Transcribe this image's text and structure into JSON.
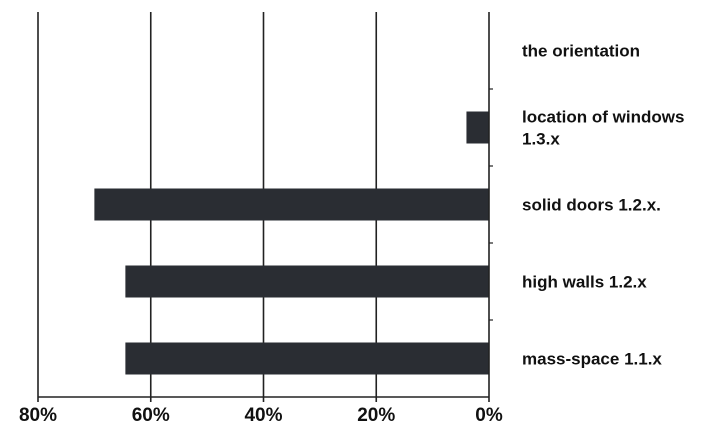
{
  "chart_data": {
    "type": "bar",
    "orientation": "horizontal",
    "x_reversed": true,
    "categories": [
      [
        "the orientation"
      ],
      [
        "location of windows",
        "1.3.x"
      ],
      [
        "solid doors 1.2.x."
      ],
      [
        "high walls 1.2.x"
      ],
      [
        "mass-space 1.1.x"
      ]
    ],
    "values": [
      0,
      4,
      70,
      64.5,
      64.5
    ],
    "xlim": [
      0,
      80
    ],
    "xticks": [
      80,
      60,
      40,
      20,
      0
    ],
    "xtick_labels": [
      "80%",
      "60%",
      "40%",
      "20%",
      "0%"
    ],
    "vertical_grid": true,
    "bar_color": "#2a2d33",
    "title": "",
    "xlabel": "",
    "ylabel": ""
  }
}
